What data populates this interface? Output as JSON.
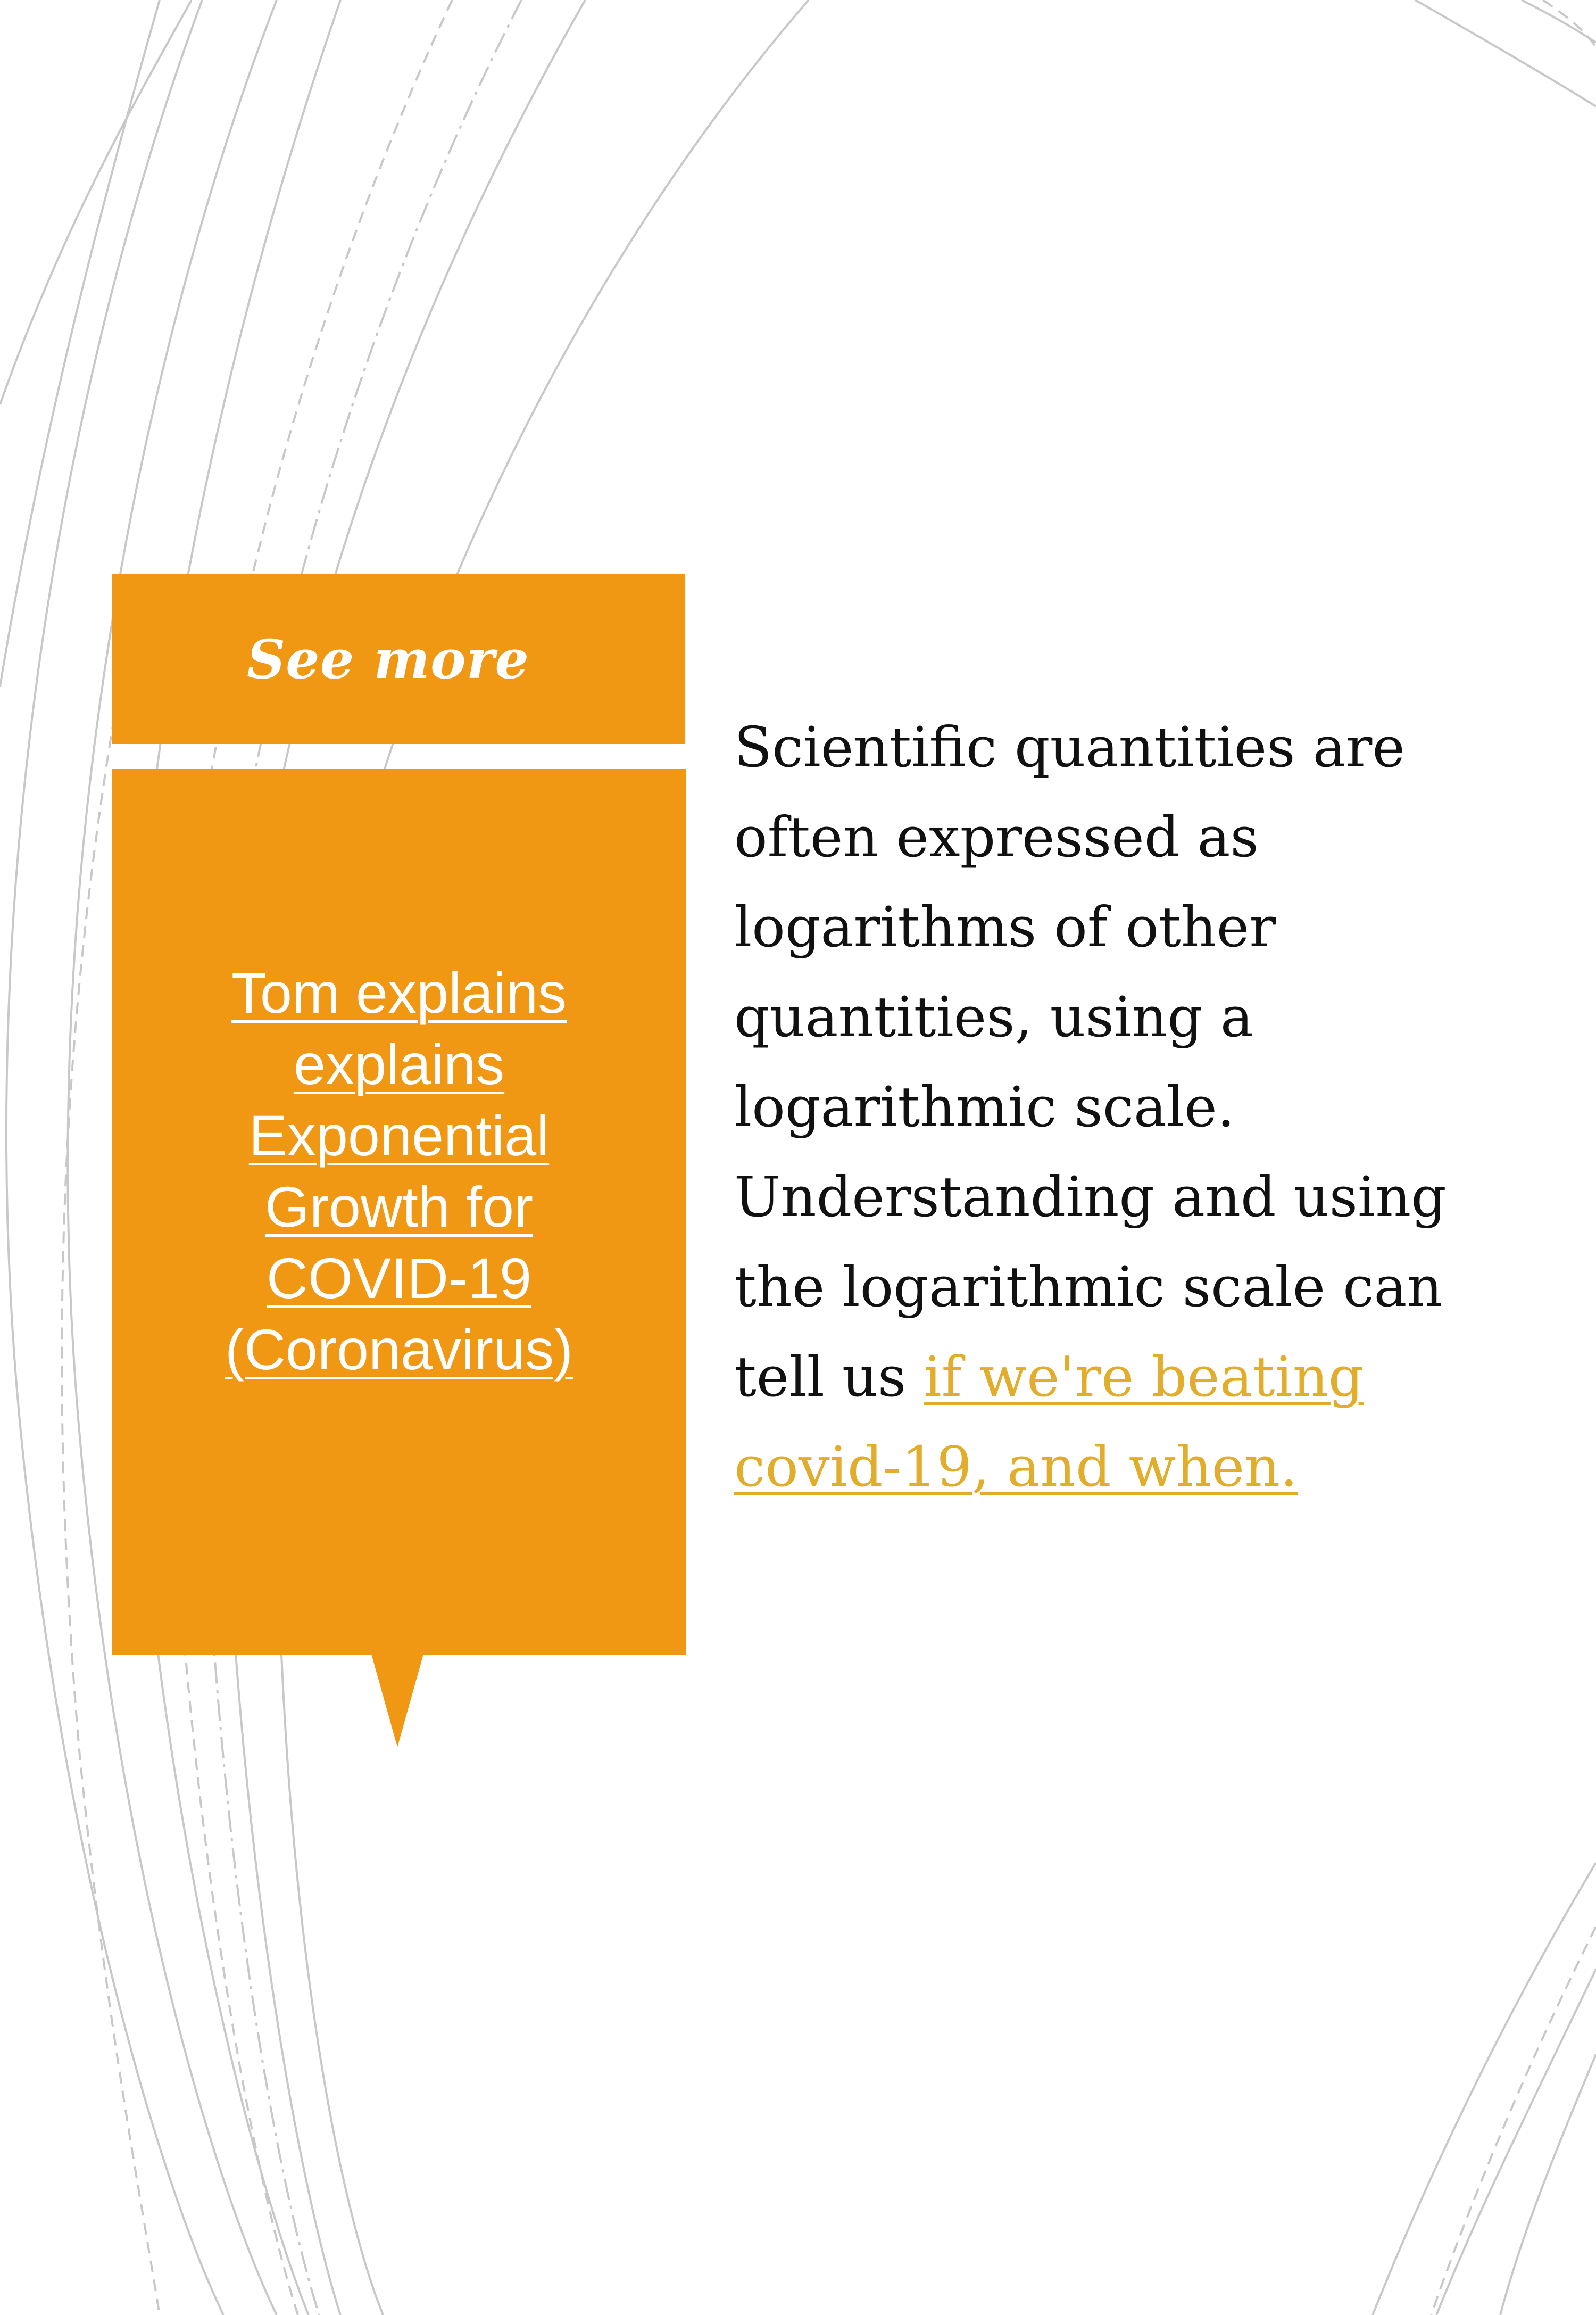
{
  "colors": {
    "accent": "#f09813",
    "link": "#e2ad2a",
    "text": "#111111",
    "background": "#ffffff",
    "arcs": "#c8c8c8"
  },
  "see_more": {
    "label": "See more"
  },
  "callout": {
    "link_lines": [
      "Tom explains",
      "explains",
      "Exponential",
      "Growth for",
      "COVID-19",
      "(Coronavirus)"
    ]
  },
  "body": {
    "lines": [
      "Scientific quantities are",
      "often expressed as",
      "logarithms of other",
      "quantities, using a",
      "logarithmic scale.",
      "Understanding and using",
      "the logarithmic scale can"
    ],
    "last_line_prefix": "tell us ",
    "link_part1": "if we're beating",
    "link_part2": "covid-19, and when."
  }
}
